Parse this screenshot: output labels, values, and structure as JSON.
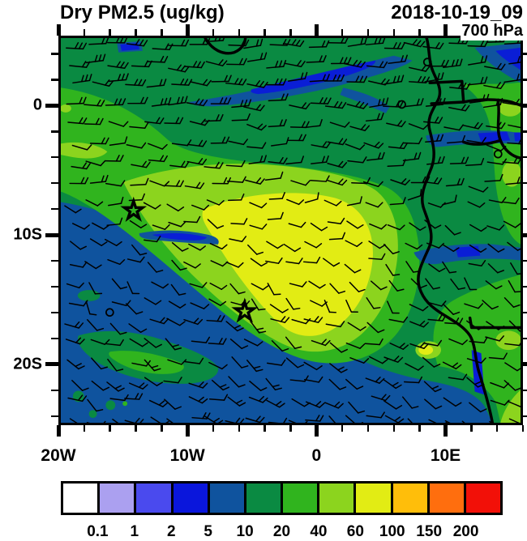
{
  "header": {
    "title": "Dry PM2.5 (ug/kg)",
    "valid_time": "2018-10-19_09",
    "level": "700 hPa"
  },
  "axes": {
    "lon": {
      "min": -20,
      "max": 16,
      "minor_step_deg": 2,
      "major_ticks": [
        -20,
        -10,
        0,
        10
      ],
      "major_labels": [
        "20W",
        "10W",
        "0",
        "10E"
      ]
    },
    "lat": {
      "max": 5.4,
      "min": -24.7,
      "minor_step_deg": 2,
      "major_ticks": [
        0,
        -10,
        -20
      ],
      "major_labels": [
        "0",
        "10S",
        "20S"
      ]
    }
  },
  "colorbar": {
    "tick_labels": [
      "0.1",
      "1",
      "2",
      "5",
      "10",
      "20",
      "40",
      "60",
      "100",
      "150",
      "200"
    ],
    "colors": [
      "#FFFFFF",
      "#ABA0F0",
      "#4A4AEE",
      "#0A16DC",
      "#0F539E",
      "#0A8A42",
      "#30B41E",
      "#8CD41E",
      "#E2EC14",
      "#FFBE0A",
      "#FF6E0E",
      "#F21008"
    ]
  },
  "map_colors": {
    "ocean_5_10": "#0F539E",
    "bright_blue_2_5": "#0A1ED6",
    "dark_green_10_20": "#0A8A42",
    "medium_green_20_40": "#30B41E",
    "yellow_green_40_60": "#8CD41E",
    "yellow_60_100": "#E2EC14",
    "coastline": "#000000",
    "barbs": "#000000"
  },
  "chart_data": {
    "type": "heatmap",
    "subtype": "filled-contour map with wind barb overlay",
    "title": "Dry PM2.5 (ug/kg)",
    "variable": "Dry PM2.5",
    "units": "ug/kg",
    "pressure_level": "700 hPa",
    "valid_time": "2018-10-19_09",
    "domain": {
      "lon_min": -20,
      "lon_max": 16,
      "lat_max": 5.4,
      "lat_min": -24.7
    },
    "xlabel_ticks": [
      "20W",
      "10W",
      "0",
      "10E"
    ],
    "ylabel_ticks": [
      "0",
      "10S",
      "20S"
    ],
    "contour_levels": [
      0.1,
      1,
      2,
      5,
      10,
      20,
      40,
      60,
      100,
      150,
      200
    ],
    "palette": [
      "#FFFFFF",
      "#ABA0F0",
      "#4A4AEE",
      "#0A16DC",
      "#0F539E",
      "#0A8A42",
      "#30B41E",
      "#8CD41E",
      "#E2EC14",
      "#FFBE0A",
      "#FF6E0E",
      "#F21008"
    ],
    "regions": [
      {
        "area": "southwest ocean (south/west of the plume edge)",
        "value_bin": "5-10"
      },
      {
        "area": "narrow strip hugging the plume/ocean boundary",
        "value_bin": "10-20"
      },
      {
        "area": "northern band along 0-5N and interior background",
        "value_bin": "10-20"
      },
      {
        "area": "broad biomass-burning plume over SE Atlantic and Angola coast",
        "value_bin": "20-60"
      },
      {
        "area": "plume core centered near 5W-1E, 7S-14S",
        "value_bin": "60-100"
      },
      {
        "area": "thin low-value streaks in Gulf of Guinea (~3-5N) and over land (~2S and ~11S)",
        "value_bin": "2-5"
      },
      {
        "area": "small detached patches near 21S, 13-17W",
        "value_bin": "10-40"
      }
    ],
    "wind_overlay": {
      "type": "wind barbs",
      "description": "easterly barbs (2-3 flags) north of ~2S, light variable barbs in plume core, southeasterly barbs (1-2 flags) over the southwest ocean; a few calm circles"
    },
    "markers": [
      {
        "type": "star",
        "lon": -14.3,
        "lat": -8.1
      },
      {
        "type": "star",
        "lon": -5.6,
        "lat": -16.0
      }
    ],
    "geography": "West/Central African coastline (Gulf of Guinea to Namibia) with country borders",
    "legend_position": "horizontal colorbar below map",
    "grid": false
  }
}
